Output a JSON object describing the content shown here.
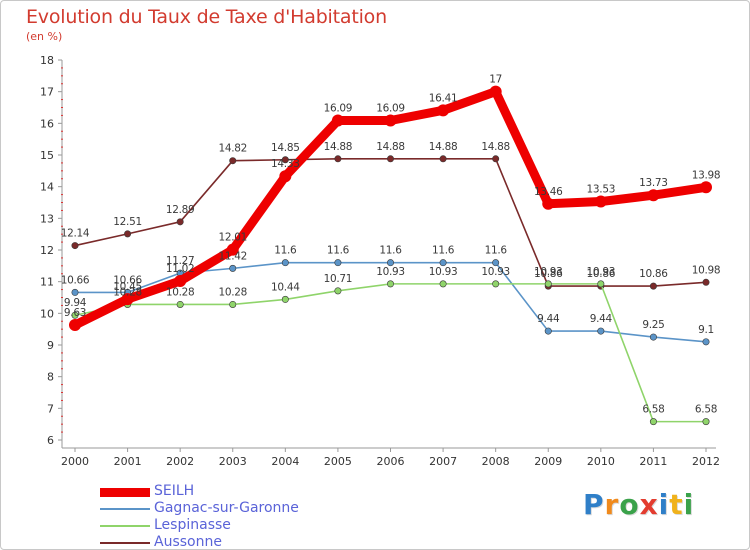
{
  "header": {
    "title": "Evolution du Taux de Taxe d'Habitation",
    "subtitle": "(en %)"
  },
  "logo": {
    "letters": [
      "P",
      "r",
      "o",
      "x",
      "i",
      "t",
      "i"
    ],
    "colors": [
      "#2f7fc8",
      "#f08a1c",
      "#3aa24a",
      "#e33c2f",
      "#2f7fc8",
      "#f0b21c",
      "#3aa24a"
    ]
  },
  "chart_data": {
    "type": "line",
    "x": [
      "2000",
      "2001",
      "2002",
      "2003",
      "2004",
      "2005",
      "2006",
      "2007",
      "2008",
      "2009",
      "2010",
      "2011",
      "2012"
    ],
    "ylim": [
      6,
      18
    ],
    "yticks": [
      "6",
      "7",
      "8",
      "9",
      "10",
      "11",
      "12",
      "13",
      "14",
      "15",
      "16",
      "17",
      "18"
    ],
    "grid": false,
    "legend_position": "bottom-left",
    "series": [
      {
        "name": "SEILH",
        "color": "#ee0000",
        "values": [
          9.63,
          10.45,
          11.02,
          12.01,
          14.33,
          16.09,
          16.09,
          16.41,
          17,
          13.46,
          13.53,
          13.73,
          13.98
        ],
        "labels": [
          "9.63",
          "10.45",
          "11.02",
          "12.01",
          "14.33",
          "16.09",
          "16.09",
          "16.41",
          "17",
          "13.46",
          "13.53",
          "13.73",
          "13.98"
        ]
      },
      {
        "name": "Gagnac-sur-Garonne",
        "color": "#5b94c8",
        "values": [
          10.66,
          10.66,
          11.27,
          11.42,
          11.6,
          11.6,
          11.6,
          11.6,
          11.6,
          9.44,
          9.44,
          9.25,
          9.1
        ],
        "labels": [
          "10.66",
          "10.66",
          "11.27",
          "11.42",
          "11.6",
          "11.6",
          "11.6",
          "11.6",
          "11.6",
          "9.44",
          "9.44",
          "9.25",
          "9.1"
        ]
      },
      {
        "name": "Lespinasse",
        "color": "#8fd46a",
        "values": [
          9.94,
          10.28,
          10.28,
          10.28,
          10.44,
          10.71,
          10.93,
          10.93,
          10.93,
          10.93,
          10.93,
          6.58,
          6.58
        ],
        "labels": [
          "9.94",
          "10.28",
          "10.28",
          "10.28",
          "10.44",
          "10.71",
          "10.93",
          "10.93",
          "10.93",
          "10.93",
          "10.93",
          "6.58",
          "6.58"
        ]
      },
      {
        "name": "Aussonne",
        "color": "#7a2a2a",
        "values": [
          12.14,
          12.51,
          12.89,
          14.82,
          14.85,
          14.88,
          14.88,
          14.88,
          14.88,
          10.86,
          10.86,
          10.86,
          10.98
        ],
        "labels": [
          "12.14",
          "12.51",
          "12.89",
          "14.82",
          "14.85",
          "14.88",
          "14.88",
          "14.88",
          "14.88",
          "10.86",
          "10.86",
          "10.86",
          "10.98"
        ]
      }
    ]
  }
}
